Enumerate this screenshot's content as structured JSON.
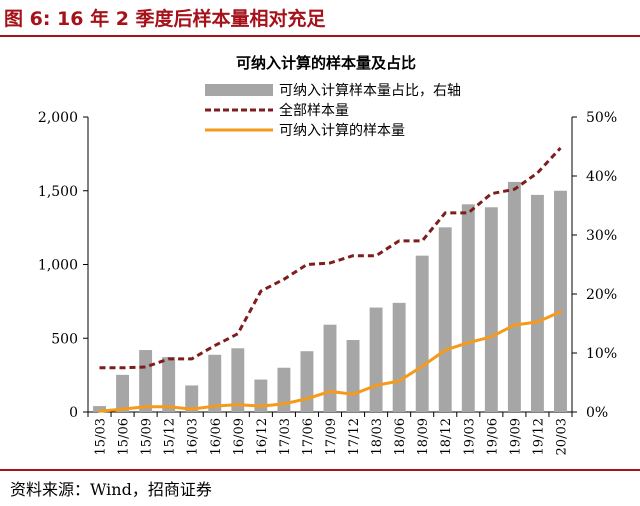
{
  "figure_title": "图 6: 16 年 2 季度后样本量相对充足",
  "source": "资料来源：Wind，招商证券",
  "chart_data": {
    "type": "bar",
    "title": "可纳入计算的样本量及占比",
    "categories": [
      "15/03",
      "15/06",
      "15/09",
      "15/12",
      "16/03",
      "16/06",
      "16/09",
      "16/12",
      "17/03",
      "17/06",
      "17/09",
      "17/12",
      "18/03",
      "18/06",
      "18/09",
      "18/12",
      "19/03",
      "19/06",
      "19/09",
      "19/12",
      "20/03"
    ],
    "ylim": [
      0,
      2000
    ],
    "y2lim": [
      0,
      0.5
    ],
    "yticks": [
      "0",
      "500",
      "1,000",
      "1,500",
      "2,000"
    ],
    "y2ticks": [
      "0%",
      "10%",
      "20%",
      "30%",
      "40%",
      "50%"
    ],
    "legend_position": "top-right",
    "series": [
      {
        "name": "可纳入计算样本量占比，右轴",
        "type": "bar",
        "axis": "right",
        "color": "#a6a6a6",
        "values": [
          0.01,
          0.063,
          0.105,
          0.093,
          0.045,
          0.097,
          0.108,
          0.055,
          0.075,
          0.103,
          0.148,
          0.122,
          0.177,
          0.185,
          0.265,
          0.313,
          0.352,
          0.347,
          0.39,
          0.368,
          0.375
        ]
      },
      {
        "name": "全部样本量",
        "type": "line",
        "axis": "left",
        "color": "#7f1d1d",
        "dashed": true,
        "values": [
          300,
          300,
          305,
          360,
          360,
          450,
          530,
          820,
          900,
          1000,
          1010,
          1060,
          1060,
          1160,
          1160,
          1350,
          1350,
          1480,
          1510,
          1620,
          1790
        ]
      },
      {
        "name": "可纳入计算的样本量",
        "type": "line",
        "axis": "left",
        "color": "#f59a1a",
        "values": [
          5,
          20,
          35,
          35,
          20,
          40,
          50,
          40,
          55,
          90,
          140,
          120,
          180,
          210,
          310,
          420,
          470,
          510,
          590,
          610,
          680
        ]
      }
    ]
  }
}
